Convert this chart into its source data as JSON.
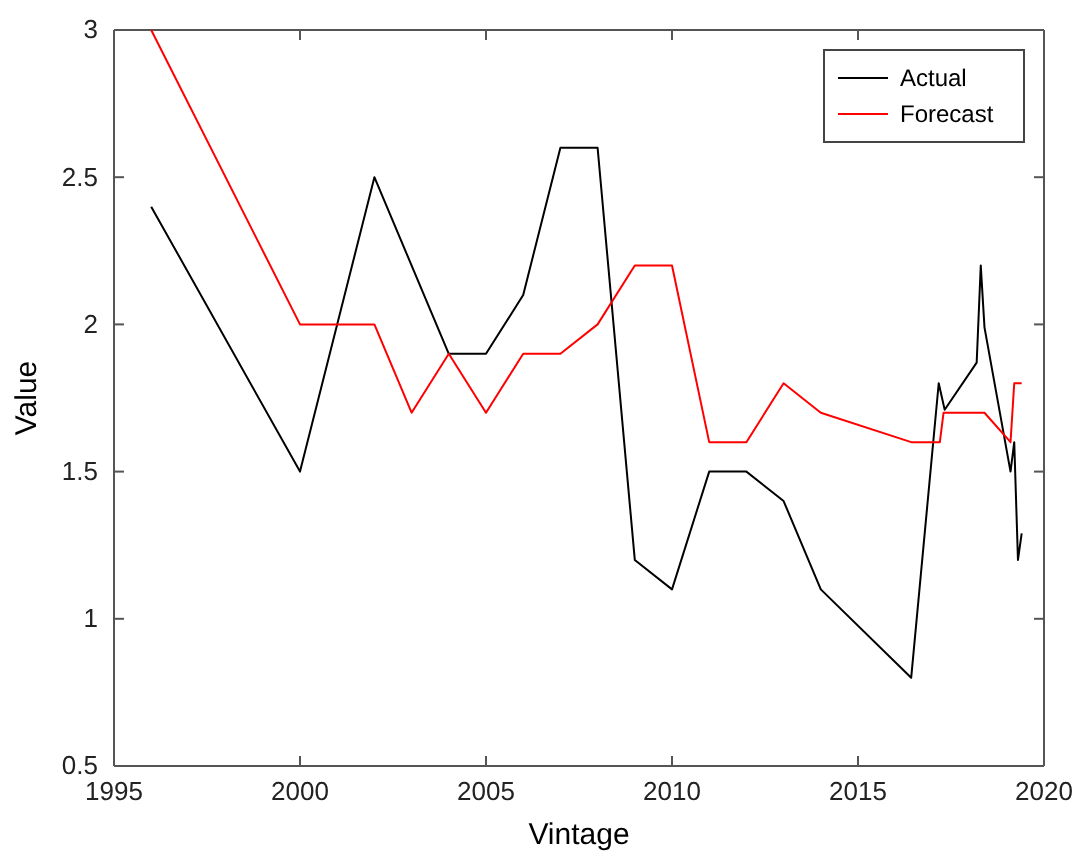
{
  "chart_data": {
    "type": "line",
    "xlabel": "Vintage",
    "ylabel": "Value",
    "xlim": [
      1995,
      2020
    ],
    "xticks": [
      1995,
      2000,
      2005,
      2010,
      2015,
      2020
    ],
    "ylim": [
      0.5,
      3
    ],
    "yticks": [
      0.5,
      1,
      1.5,
      2,
      2.5,
      3
    ],
    "grid": false,
    "legend": "top right",
    "line_style": "solid",
    "marker": "none",
    "series": [
      {
        "name": "Actual",
        "color": "#000000",
        "x": [
          1996,
          2000,
          2002,
          2004,
          2005,
          2006,
          2007,
          2008,
          2009,
          2010,
          2011,
          2012,
          2013,
          2014,
          2016.43,
          2017.17,
          2017.33,
          2018.19,
          2018.3,
          2018.4,
          2019.1,
          2019.2,
          2019.3,
          2019.4
        ],
        "values": [
          2.4,
          1.5,
          2.5,
          1.9,
          1.9,
          2.1,
          2.6,
          2.6,
          1.2,
          1.1,
          1.5,
          1.5,
          1.4,
          1.1,
          0.8,
          1.8,
          1.71,
          1.87,
          2.2,
          1.99,
          1.5,
          1.6,
          1.2,
          1.29
        ]
      },
      {
        "name": "Forecast",
        "color": "#ff0000",
        "x": [
          1996,
          2000,
          2002,
          2003,
          2004,
          2005,
          2006,
          2007,
          2008,
          2009,
          2010,
          2011,
          2012,
          2013,
          2014,
          2016.43,
          2017.2,
          2017.3,
          2018.4,
          2019.1,
          2019.2,
          2019.4
        ],
        "values": [
          3,
          2,
          2,
          1.7,
          1.9,
          1.7,
          1.9,
          1.9,
          2,
          2.2,
          2.2,
          1.6,
          1.6,
          1.8,
          1.7,
          1.6,
          1.6,
          1.7,
          1.7,
          1.6,
          1.8,
          1.8
        ]
      }
    ]
  }
}
